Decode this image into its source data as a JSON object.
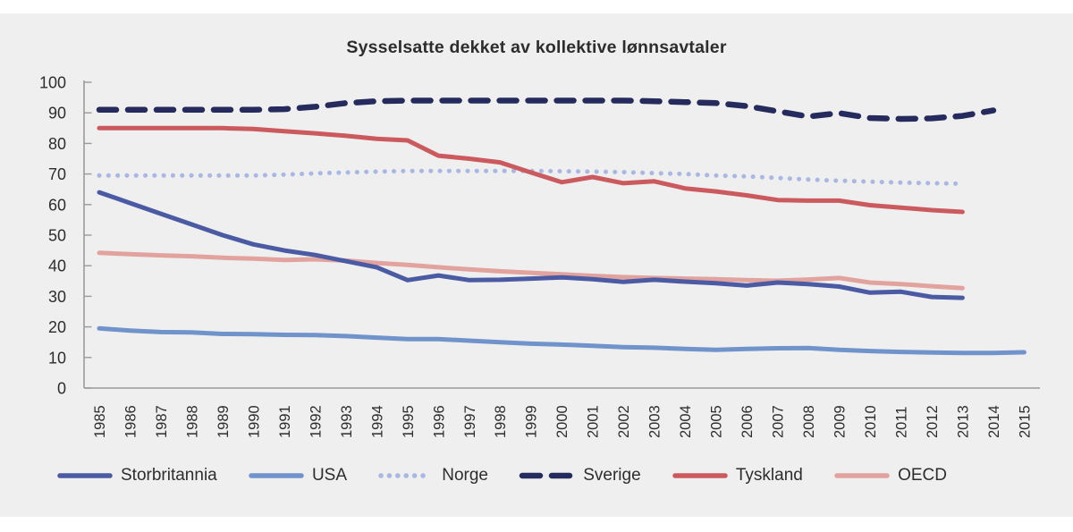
{
  "page": {
    "background": "#ffffff",
    "panel_background": "#f0efef"
  },
  "chart_data": {
    "type": "line",
    "title": "Sysselsatte dekket av kollektive lønnsavtaler",
    "xlabel": "",
    "ylabel": "",
    "grid": false,
    "legend_position": "bottom",
    "axis_color": "#9a9a9a",
    "text_color": "#2d2d2d",
    "ylim": [
      0,
      100
    ],
    "y_ticks": [
      0,
      10,
      20,
      30,
      40,
      50,
      60,
      70,
      80,
      90,
      100
    ],
    "x": [
      1985,
      1986,
      1987,
      1988,
      1989,
      1990,
      1991,
      1992,
      1993,
      1994,
      1995,
      1996,
      1997,
      1998,
      1999,
      2000,
      2001,
      2002,
      2003,
      2004,
      2005,
      2006,
      2007,
      2008,
      2009,
      2010,
      2011,
      2012,
      2013,
      2014,
      2015
    ],
    "series": [
      {
        "name": "Storbritannia",
        "color": "#4a5aa3",
        "style": "solid",
        "start_year": 1985,
        "values": [
          64,
          60.5,
          57,
          53.5,
          50,
          47,
          45,
          43.5,
          41.5,
          39.5,
          35.3,
          36.8,
          35.3,
          35.4,
          35.8,
          36.2,
          35.6,
          34.7,
          35.4,
          34.8,
          34.3,
          33.5,
          34.5,
          34,
          33.2,
          31.2,
          31.5,
          29.8,
          29.5
        ]
      },
      {
        "name": "USA",
        "color": "#7093cb",
        "style": "solid",
        "start_year": 1985,
        "values": [
          19.5,
          18.8,
          18.3,
          18.2,
          17.7,
          17.6,
          17.4,
          17.3,
          17,
          16.5,
          16,
          16,
          15.5,
          15,
          14.5,
          14.2,
          13.8,
          13.4,
          13.2,
          12.8,
          12.5,
          12.8,
          13,
          13.1,
          12.5,
          12.1,
          11.8,
          11.6,
          11.5,
          11.5,
          11.7
        ]
      },
      {
        "name": "Norge",
        "color": "#a9b8e3",
        "style": "dotted",
        "start_year": 1985,
        "values": [
          69.5,
          69.5,
          69.5,
          69.5,
          69.5,
          69.5,
          69.8,
          70.2,
          70.5,
          70.8,
          71,
          71,
          71,
          71,
          71,
          70.9,
          70.8,
          70.6,
          70.3,
          70,
          69.5,
          69.2,
          68.7,
          68.2,
          67.8,
          67.5,
          67.2,
          67,
          66.8
        ]
      },
      {
        "name": "Sverige",
        "color": "#262b5d",
        "style": "dashed",
        "start_year": 1985,
        "values": [
          91,
          91,
          91,
          91,
          91,
          91,
          91.2,
          92,
          93.2,
          93.8,
          94,
          94,
          94,
          94,
          94,
          94,
          94,
          94,
          93.8,
          93.5,
          93.2,
          92.2,
          90.5,
          88.8,
          89.9,
          88.3,
          88,
          88.2,
          89,
          90.8
        ]
      },
      {
        "name": "Tyskland",
        "color": "#cb5a5e",
        "style": "solid",
        "start_year": 1985,
        "values": [
          85,
          85,
          85,
          85,
          85,
          84.7,
          84,
          83.3,
          82.5,
          81.5,
          81,
          76,
          75,
          73.8,
          70.5,
          67.3,
          69,
          67,
          67.6,
          65.3,
          64.3,
          63,
          61.5,
          61.3,
          61.3,
          59.8,
          59,
          58.2,
          57.6
        ]
      },
      {
        "name": "OECD",
        "color": "#e2a39e",
        "style": "solid",
        "start_year": 1985,
        "values": [
          44.2,
          43.8,
          43.4,
          43.1,
          42.6,
          42.3,
          41.9,
          42.1,
          41.7,
          40.9,
          40.3,
          39.5,
          38.8,
          38.2,
          37.7,
          37.2,
          36.7,
          36.3,
          36,
          35.8,
          35.6,
          35.3,
          35.1,
          35.5,
          36,
          34.5,
          34,
          33.3,
          32.7
        ]
      }
    ]
  }
}
